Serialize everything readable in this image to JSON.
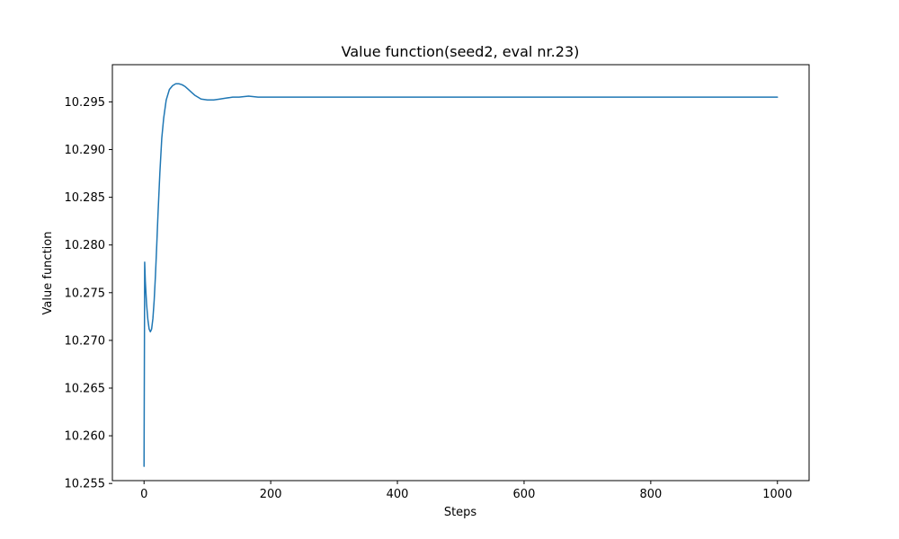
{
  "chart_data": {
    "type": "line",
    "title": "Value function(seed2, eval nr.23)",
    "xlabel": "Steps",
    "ylabel": "Value function",
    "xlim": [
      -50,
      1050
    ],
    "ylim": [
      10.2553,
      10.2989
    ],
    "xticks": [
      0,
      200,
      400,
      600,
      800,
      1000
    ],
    "xtick_labels": [
      "0",
      "200",
      "400",
      "600",
      "800",
      "1000"
    ],
    "yticks": [
      10.255,
      10.26,
      10.265,
      10.27,
      10.275,
      10.28,
      10.285,
      10.29,
      10.295
    ],
    "ytick_labels": [
      "10.255",
      "10.260",
      "10.265",
      "10.270",
      "10.275",
      "10.280",
      "10.285",
      "10.290",
      "10.295"
    ],
    "grid": false,
    "series": [
      {
        "color": "#1f77b4",
        "x": [
          0,
          1,
          2,
          4,
          6,
          8,
          10,
          12,
          14,
          16,
          18,
          20,
          22,
          25,
          28,
          31,
          35,
          40,
          45,
          50,
          55,
          60,
          65,
          70,
          75,
          80,
          90,
          100,
          110,
          120,
          130,
          140,
          150,
          165,
          180,
          200,
          250,
          300,
          400,
          500,
          600,
          700,
          800,
          900,
          1000
        ],
        "y": [
          10.2568,
          10.2782,
          10.2762,
          10.2738,
          10.2722,
          10.2712,
          10.2709,
          10.2712,
          10.2723,
          10.2742,
          10.2768,
          10.2799,
          10.2832,
          10.2876,
          10.2912,
          10.2933,
          10.2952,
          10.2963,
          10.2967,
          10.2969,
          10.2969,
          10.2968,
          10.2966,
          10.2963,
          10.296,
          10.2957,
          10.2953,
          10.2952,
          10.2952,
          10.2953,
          10.2954,
          10.2955,
          10.2955,
          10.2956,
          10.2955,
          10.2955,
          10.2955,
          10.2955,
          10.2955,
          10.2955,
          10.2955,
          10.2955,
          10.2955,
          10.2955,
          10.2955
        ]
      }
    ]
  }
}
